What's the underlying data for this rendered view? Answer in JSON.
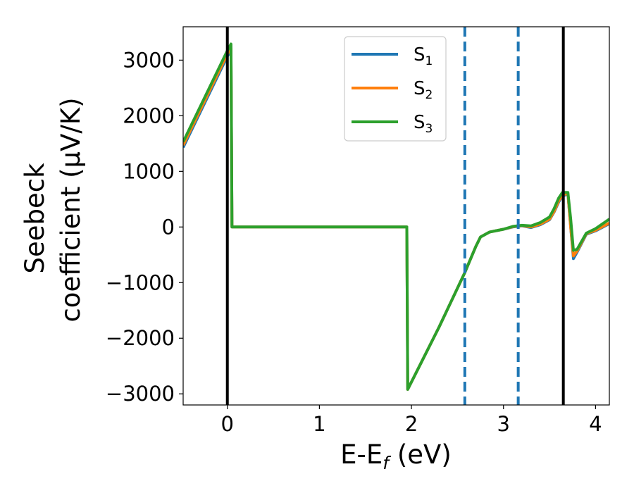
{
  "chart_data": {
    "type": "line",
    "xlabel": {
      "main": "E-E",
      "sub": "f",
      "unit": " (eV)"
    },
    "ylabel": {
      "line1": "Seebeck",
      "line2": "coefficient  (μV/K)"
    },
    "xlim": [
      -0.48,
      4.15
    ],
    "ylim": [
      -3200,
      3600
    ],
    "xticks": [
      0,
      1,
      2,
      3,
      4
    ],
    "yticks": [
      3000,
      2000,
      1000,
      0,
      -1000,
      -2000,
      -3000
    ],
    "ytick_labels": [
      "3000",
      "2000",
      "1000",
      "0",
      "−1000",
      "−2000",
      "−3000"
    ],
    "grid": false,
    "legend_position": "upper-center",
    "vlines": [
      {
        "x": 0.0,
        "style": "solid",
        "color": "#000000"
      },
      {
        "x": 2.58,
        "style": "dashed",
        "color": "#1f77b4"
      },
      {
        "x": 3.16,
        "style": "dashed",
        "color": "#1f77b4"
      },
      {
        "x": 3.65,
        "style": "solid",
        "color": "#000000"
      }
    ],
    "series": [
      {
        "name": "S",
        "sub": "1",
        "color": "#1f77b4",
        "x": [
          -0.48,
          0.0,
          0.04,
          0.05,
          1.0,
          1.95,
          1.96,
          2.3,
          2.58,
          2.7,
          2.75,
          2.85,
          3.0,
          3.1,
          3.2,
          3.3,
          3.4,
          3.5,
          3.55,
          3.6,
          3.64,
          3.7,
          3.73,
          3.76,
          3.8,
          3.9,
          4.0,
          4.15
        ],
        "y": [
          1430,
          3070,
          3170,
          0,
          0,
          0,
          -2920,
          -1800,
          -820,
          -350,
          -180,
          -90,
          -40,
          0,
          20,
          -10,
          40,
          130,
          270,
          450,
          560,
          590,
          0,
          -570,
          -450,
          -130,
          -70,
          60
        ]
      },
      {
        "name": "S",
        "sub": "2",
        "color": "#ff7f0e",
        "x": [
          -0.48,
          0.0,
          0.04,
          0.05,
          1.0,
          1.95,
          1.96,
          2.3,
          2.58,
          2.7,
          2.75,
          2.85,
          3.0,
          3.1,
          3.2,
          3.3,
          3.4,
          3.5,
          3.55,
          3.6,
          3.64,
          3.7,
          3.73,
          3.76,
          3.8,
          3.9,
          4.0,
          4.15
        ],
        "y": [
          1470,
          3110,
          3210,
          0,
          0,
          0,
          -2920,
          -1800,
          -820,
          -350,
          -180,
          -90,
          -40,
          5,
          25,
          0,
          50,
          140,
          280,
          470,
          580,
          600,
          0,
          -520,
          -430,
          -120,
          -60,
          70
        ]
      },
      {
        "name": "S",
        "sub": "3",
        "color": "#2ca02c",
        "x": [
          -0.48,
          0.0,
          0.04,
          0.05,
          1.0,
          1.95,
          1.96,
          2.3,
          2.58,
          2.7,
          2.75,
          2.85,
          3.0,
          3.1,
          3.2,
          3.3,
          3.4,
          3.5,
          3.55,
          3.6,
          3.64,
          3.7,
          3.73,
          3.76,
          3.8,
          3.9,
          4.0,
          4.15
        ],
        "y": [
          1530,
          3170,
          3290,
          0,
          0,
          0,
          -2920,
          -1800,
          -820,
          -350,
          -180,
          -90,
          -40,
          10,
          30,
          20,
          80,
          180,
          330,
          520,
          620,
          620,
          150,
          -420,
          -400,
          -110,
          -30,
          140
        ]
      }
    ]
  }
}
